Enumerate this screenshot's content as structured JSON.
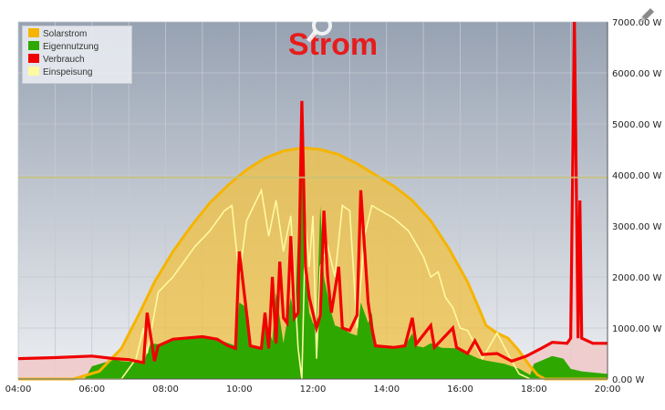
{
  "chart_data": {
    "type": "area",
    "title": "Strom",
    "xlabel": "",
    "ylabel": "",
    "x_ticks": [
      "04:00",
      "06:00",
      "08:00",
      "10:00",
      "12:00",
      "14:00",
      "16:00",
      "18:00",
      "20:00"
    ],
    "y_ticks": [
      "0.00 W",
      "1000.00 W",
      "2000.00 W",
      "3000.00 W",
      "4000.00 W",
      "5000.00 W",
      "6000.00 W",
      "7000.00 W"
    ],
    "xlim": [
      4,
      20
    ],
    "ylim": [
      0,
      7000
    ],
    "grid": true,
    "legend_position": "top-left",
    "reference_line_w": 3950,
    "series": [
      {
        "name": "Solarstrom",
        "color": "#f5b400",
        "points": [
          [
            4,
            0
          ],
          [
            5.5,
            0
          ],
          [
            6.2,
            150
          ],
          [
            6.8,
            600
          ],
          [
            7.3,
            1300
          ],
          [
            7.7,
            1900
          ],
          [
            8.2,
            2500
          ],
          [
            8.7,
            3000
          ],
          [
            9.2,
            3450
          ],
          [
            9.7,
            3800
          ],
          [
            10.2,
            4100
          ],
          [
            10.7,
            4330
          ],
          [
            11.2,
            4470
          ],
          [
            11.7,
            4530
          ],
          [
            12.2,
            4500
          ],
          [
            12.7,
            4400
          ],
          [
            13.2,
            4220
          ],
          [
            13.7,
            4000
          ],
          [
            14.2,
            3780
          ],
          [
            14.7,
            3500
          ],
          [
            15.2,
            3100
          ],
          [
            15.7,
            2550
          ],
          [
            16.2,
            1900
          ],
          [
            16.5,
            1400
          ],
          [
            16.7,
            1050
          ],
          [
            17.0,
            900
          ],
          [
            17.3,
            800
          ],
          [
            17.6,
            550
          ],
          [
            17.9,
            250
          ],
          [
            18.1,
            80
          ],
          [
            18.3,
            0
          ],
          [
            20,
            0
          ]
        ]
      },
      {
        "name": "Eigennutzung",
        "color": "#2ea800",
        "points": [
          [
            4,
            0
          ],
          [
            5.8,
            0
          ],
          [
            6.0,
            250
          ],
          [
            6.6,
            380
          ],
          [
            6.8,
            350
          ],
          [
            7.4,
            320
          ],
          [
            7.6,
            700
          ],
          [
            7.8,
            680
          ],
          [
            8.2,
            800
          ],
          [
            9.0,
            820
          ],
          [
            9.3,
            780
          ],
          [
            9.6,
            730
          ],
          [
            9.9,
            650
          ],
          [
            10.0,
            1500
          ],
          [
            10.2,
            1400
          ],
          [
            10.3,
            650
          ],
          [
            10.6,
            620
          ],
          [
            10.7,
            1200
          ],
          [
            10.9,
            750
          ],
          [
            11.0,
            1700
          ],
          [
            11.2,
            700
          ],
          [
            11.4,
            1600
          ],
          [
            11.5,
            1200
          ],
          [
            11.7,
            4500
          ],
          [
            11.8,
            2200
          ],
          [
            11.9,
            1300
          ],
          [
            12.0,
            1100
          ],
          [
            12.1,
            1000
          ],
          [
            12.2,
            3400
          ],
          [
            12.3,
            2000
          ],
          [
            12.5,
            1300
          ],
          [
            12.6,
            1050
          ],
          [
            12.8,
            1000
          ],
          [
            13.0,
            900
          ],
          [
            13.2,
            850
          ],
          [
            13.3,
            1500
          ],
          [
            13.5,
            1100
          ],
          [
            13.6,
            1300
          ],
          [
            13.7,
            650
          ],
          [
            14.5,
            640
          ],
          [
            14.7,
            900
          ],
          [
            14.8,
            650
          ],
          [
            15.0,
            620
          ],
          [
            15.2,
            700
          ],
          [
            15.5,
            610
          ],
          [
            16.0,
            600
          ],
          [
            16.2,
            500
          ],
          [
            16.5,
            400
          ],
          [
            16.7,
            360
          ],
          [
            17.2,
            300
          ],
          [
            17.6,
            200
          ],
          [
            17.9,
            80
          ],
          [
            18.0,
            300
          ],
          [
            18.5,
            450
          ],
          [
            18.8,
            400
          ],
          [
            19.0,
            200
          ],
          [
            19.3,
            150
          ],
          [
            20,
            100
          ]
        ]
      },
      {
        "name": "Verbrauch",
        "color": "#f00000",
        "points": [
          [
            4,
            400
          ],
          [
            5,
            420
          ],
          [
            6,
            450
          ],
          [
            6.6,
            400
          ],
          [
            7.0,
            380
          ],
          [
            7.4,
            320
          ],
          [
            7.5,
            1300
          ],
          [
            7.7,
            350
          ],
          [
            7.8,
            650
          ],
          [
            8.2,
            780
          ],
          [
            9.0,
            830
          ],
          [
            9.4,
            780
          ],
          [
            9.7,
            650
          ],
          [
            9.9,
            600
          ],
          [
            10.0,
            2500
          ],
          [
            10.2,
            1300
          ],
          [
            10.3,
            650
          ],
          [
            10.6,
            600
          ],
          [
            10.7,
            1300
          ],
          [
            10.8,
            600
          ],
          [
            10.9,
            2000
          ],
          [
            11.0,
            700
          ],
          [
            11.1,
            2300
          ],
          [
            11.2,
            1200
          ],
          [
            11.3,
            1100
          ],
          [
            11.4,
            2800
          ],
          [
            11.5,
            1200
          ],
          [
            11.6,
            1300
          ],
          [
            11.7,
            5450
          ],
          [
            11.8,
            2200
          ],
          [
            11.9,
            1600
          ],
          [
            12.0,
            1300
          ],
          [
            12.1,
            1000
          ],
          [
            12.2,
            1250
          ],
          [
            12.3,
            3300
          ],
          [
            12.4,
            2000
          ],
          [
            12.5,
            1300
          ],
          [
            12.7,
            2200
          ],
          [
            12.8,
            1000
          ],
          [
            13.0,
            950
          ],
          [
            13.2,
            1250
          ],
          [
            13.3,
            3700
          ],
          [
            13.4,
            2600
          ],
          [
            13.5,
            1500
          ],
          [
            13.6,
            1000
          ],
          [
            13.7,
            650
          ],
          [
            14.2,
            620
          ],
          [
            14.5,
            650
          ],
          [
            14.7,
            1200
          ],
          [
            14.8,
            680
          ],
          [
            15.2,
            1050
          ],
          [
            15.3,
            620
          ],
          [
            15.8,
            1000
          ],
          [
            15.9,
            620
          ],
          [
            16.2,
            500
          ],
          [
            16.4,
            750
          ],
          [
            16.6,
            480
          ],
          [
            17.0,
            500
          ],
          [
            17.4,
            350
          ],
          [
            17.8,
            450
          ],
          [
            18.2,
            600
          ],
          [
            18.5,
            720
          ],
          [
            18.9,
            700
          ],
          [
            19.0,
            800
          ],
          [
            19.1,
            7000
          ],
          [
            19.2,
            800
          ],
          [
            19.25,
            3500
          ],
          [
            19.3,
            800
          ],
          [
            19.6,
            700
          ],
          [
            20,
            700
          ]
        ]
      },
      {
        "name": "Einspeisung",
        "color": "#fff9a0",
        "points": [
          [
            4,
            0
          ],
          [
            6.8,
            0
          ],
          [
            7.2,
            400
          ],
          [
            7.4,
            1000
          ],
          [
            7.5,
            500
          ],
          [
            7.8,
            1700
          ],
          [
            8.2,
            2000
          ],
          [
            8.8,
            2600
          ],
          [
            9.2,
            2900
          ],
          [
            9.6,
            3300
          ],
          [
            9.8,
            3400
          ],
          [
            10.0,
            2000
          ],
          [
            10.2,
            3100
          ],
          [
            10.6,
            3700
          ],
          [
            10.8,
            2800
          ],
          [
            11.0,
            3500
          ],
          [
            11.2,
            2500
          ],
          [
            11.4,
            3200
          ],
          [
            11.6,
            600
          ],
          [
            11.7,
            0
          ],
          [
            11.8,
            3000
          ],
          [
            11.9,
            2200
          ],
          [
            12.0,
            3200
          ],
          [
            12.1,
            400
          ],
          [
            12.2,
            2200
          ],
          [
            12.4,
            2600
          ],
          [
            12.6,
            2000
          ],
          [
            12.8,
            3400
          ],
          [
            13.0,
            3300
          ],
          [
            13.2,
            1000
          ],
          [
            13.4,
            2800
          ],
          [
            13.6,
            3400
          ],
          [
            14.2,
            3150
          ],
          [
            14.6,
            2900
          ],
          [
            15.0,
            2400
          ],
          [
            15.2,
            2000
          ],
          [
            15.4,
            2100
          ],
          [
            15.6,
            1600
          ],
          [
            15.8,
            1400
          ],
          [
            16.0,
            1000
          ],
          [
            16.2,
            950
          ],
          [
            16.6,
            400
          ],
          [
            17.0,
            900
          ],
          [
            17.4,
            350
          ],
          [
            17.6,
            100
          ],
          [
            17.9,
            0
          ],
          [
            18.5,
            0
          ],
          [
            19.1,
            0
          ],
          [
            20,
            0
          ]
        ]
      }
    ]
  },
  "colors": {
    "plot_bg_top": "#98a3b3",
    "plot_bg_bottom": "#e8ebef",
    "verbrauch_fill": "#f0c8c8"
  },
  "icons": {
    "zoom": "magnifier-icon",
    "edit": "pencil-icon"
  }
}
